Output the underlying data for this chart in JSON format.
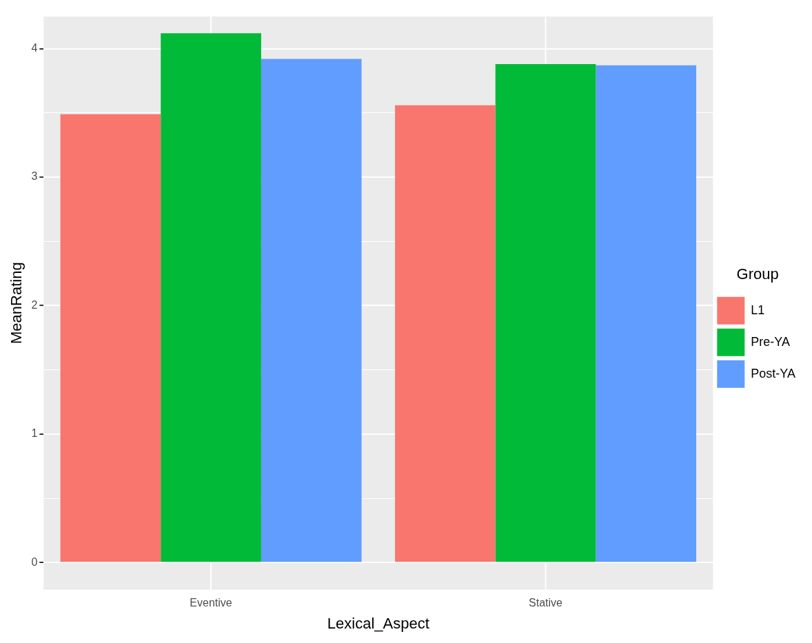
{
  "chart_data": {
    "type": "bar",
    "xlabel": "Lexical_Aspect",
    "ylabel": "MeanRating",
    "legend_title": "Group",
    "categories": [
      "Eventive",
      "Stative"
    ],
    "series": [
      {
        "name": "L1",
        "color": "#f8766d",
        "values": [
          3.49,
          3.56
        ]
      },
      {
        "name": "Pre-YA",
        "color": "#00ba38",
        "values": [
          4.12,
          3.88
        ]
      },
      {
        "name": "Post-YA",
        "color": "#619cff",
        "values": [
          3.92,
          3.87
        ]
      }
    ],
    "ylim": [
      -0.21,
      4.25
    ],
    "yticks": [
      0,
      {
        "value": 0.5,
        "label": null
      },
      1,
      {
        "value": 1.5,
        "label": null
      },
      2,
      {
        "value": 2.5,
        "label": null
      },
      3,
      {
        "value": 3.5,
        "label": null
      },
      4
    ],
    "grid": true,
    "legend": "right"
  }
}
